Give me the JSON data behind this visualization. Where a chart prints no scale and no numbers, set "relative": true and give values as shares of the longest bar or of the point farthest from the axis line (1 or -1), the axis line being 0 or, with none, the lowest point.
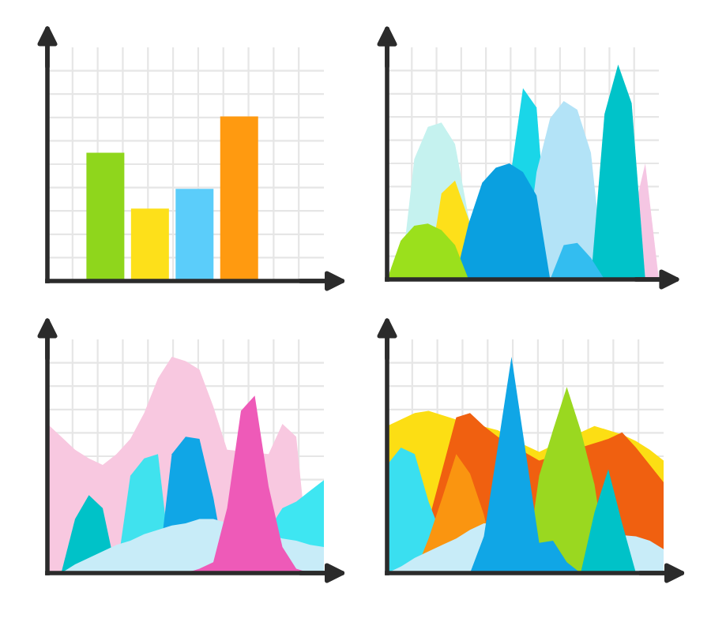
{
  "chart_data": [
    {
      "type": "bar",
      "relative": true,
      "categories": [
        null,
        null,
        null,
        null
      ],
      "values": [
        0.78,
        0.44,
        0.56,
        1
      ],
      "colors": [
        "#8fd61c",
        "#fde01a",
        "#5bcdfa",
        "#ff9a10"
      ],
      "grid": true,
      "tick_labels": false
    },
    {
      "type": "area",
      "relative": true,
      "grid": true,
      "tick_labels": false,
      "categories": [
        null,
        null,
        null,
        null,
        null,
        null,
        null,
        null,
        null,
        null,
        null,
        null,
        null,
        null,
        null,
        null,
        null,
        null,
        null,
        null,
        null
      ],
      "series": [
        {
          "color": "#c5f2ef",
          "values": [
            null,
            0,
            0.56,
            0.71,
            0.73,
            0.63,
            0.29,
            0,
            null,
            null,
            null,
            null,
            null,
            null,
            null,
            null,
            null,
            null,
            null,
            null,
            null
          ]
        },
        {
          "color": "#f5c6e3",
          "values": [
            null,
            null,
            null,
            null,
            null,
            null,
            null,
            null,
            null,
            null,
            null,
            null,
            null,
            null,
            null,
            null,
            null,
            0,
            null,
            0.54,
            0
          ]
        },
        {
          "color": "#1ad6e8",
          "values": [
            null,
            null,
            null,
            null,
            null,
            null,
            null,
            null,
            0,
            null,
            0.89,
            0.8,
            0,
            null,
            null,
            null,
            null,
            null,
            null,
            null,
            null
          ]
        },
        {
          "color": "#b3e3f7",
          "values": [
            null,
            null,
            null,
            null,
            null,
            null,
            null,
            null,
            null,
            null,
            0,
            0.5,
            0.75,
            0.83,
            0.79,
            0.59,
            0,
            null,
            null,
            null,
            null
          ]
        },
        {
          "color": "#00c3c9",
          "values": [
            null,
            null,
            null,
            null,
            null,
            null,
            null,
            null,
            null,
            null,
            null,
            null,
            null,
            null,
            null,
            0,
            0.77,
            1,
            0.82,
            0,
            null
          ]
        },
        {
          "color": "#fde01a",
          "values": [
            null,
            null,
            null,
            0,
            0.4,
            0.46,
            0.28,
            0,
            null,
            null,
            null,
            null,
            null,
            null,
            null,
            null,
            null,
            null,
            null,
            null,
            null
          ]
        },
        {
          "color": "#0aa0e0",
          "values": [
            null,
            null,
            null,
            null,
            null,
            0,
            0.26,
            0.45,
            0.52,
            0.54,
            0.5,
            0.39,
            0,
            null,
            null,
            null,
            null,
            null,
            null,
            null,
            null
          ]
        },
        {
          "color": "#9be01c",
          "values": [
            0,
            0.18,
            0.25,
            0.26,
            0.23,
            0.16,
            0,
            null,
            null,
            null,
            null,
            null,
            null,
            null,
            null,
            null,
            null,
            null,
            null,
            null,
            null
          ]
        },
        {
          "color": "#33bdf0",
          "values": [
            null,
            null,
            null,
            null,
            null,
            null,
            null,
            null,
            null,
            null,
            null,
            null,
            0,
            0.16,
            0.17,
            0.1,
            0,
            null,
            null,
            null,
            null
          ]
        }
      ]
    },
    {
      "type": "area",
      "relative": true,
      "grid": true,
      "tick_labels": false,
      "categories": [
        null,
        null,
        null,
        null,
        null,
        null,
        null,
        null,
        null,
        null,
        null,
        null,
        null,
        null,
        null,
        null,
        null,
        null,
        null,
        null,
        null
      ],
      "series": [
        {
          "color": "#f8c8e0",
          "values": [
            0.69,
            0.63,
            0.57,
            0.53,
            0.5,
            0.55,
            0.62,
            0.74,
            0.9,
            1,
            0.98,
            0.94,
            0.77,
            0.57,
            null,
            null,
            0.55,
            0.69,
            0.63,
            0,
            null
          ]
        },
        {
          "color": "#3ee6f2",
          "values": [
            null,
            null,
            null,
            null,
            null,
            null,
            null,
            null,
            null,
            null,
            null,
            null,
            null,
            null,
            0,
            null,
            null,
            0.3,
            0.33,
            0.38,
            0.43
          ]
        },
        {
          "color": "#40e2ee",
          "values": [
            null,
            null,
            null,
            null,
            null,
            0,
            0.45,
            0.53,
            0.55,
            0,
            null,
            null,
            null,
            null,
            null,
            null,
            null,
            null,
            null,
            null,
            null
          ]
        },
        {
          "color": "#10a6e6",
          "values": [
            null,
            null,
            null,
            null,
            null,
            null,
            null,
            null,
            0,
            0.55,
            0.63,
            0.62,
            0.35,
            0,
            null,
            null,
            null,
            null,
            null,
            null,
            null
          ]
        },
        {
          "color": "#00c2c8",
          "values": [
            null,
            0,
            0.25,
            0.36,
            0.3,
            0,
            null,
            null,
            null,
            null,
            null,
            null,
            null,
            null,
            null,
            null,
            null,
            null,
            null,
            null,
            null
          ]
        },
        {
          "color": "#c8ecf8",
          "values": [
            null,
            0,
            0.04,
            0.07,
            0.1,
            0.13,
            0.15,
            0.18,
            0.2,
            0.22,
            0.23,
            0.25,
            0.25,
            null,
            null,
            null,
            null,
            0.16,
            0.15,
            0.13,
            0.12
          ]
        },
        {
          "color": "#ee5ab8",
          "values": [
            null,
            null,
            null,
            null,
            null,
            null,
            null,
            null,
            null,
            null,
            0,
            0.02,
            0.05,
            0.3,
            0.75,
            0.82,
            0.4,
            0.12,
            0.02,
            0,
            null
          ]
        }
      ]
    },
    {
      "type": "area",
      "relative": true,
      "grid": true,
      "tick_labels": false,
      "categories": [
        null,
        null,
        null,
        null,
        null,
        null,
        null,
        null,
        null,
        null,
        null,
        null,
        null,
        null,
        null,
        null,
        null,
        null,
        null,
        null,
        null
      ],
      "series": [
        {
          "color": "#fcde14",
          "values": [
            0.68,
            0.71,
            0.74,
            0.75,
            0.73,
            0.71,
            null,
            null,
            0.66,
            null,
            0.59,
            0.56,
            null,
            null,
            0.65,
            0.68,
            0.66,
            0.64,
            0.61,
            0.57,
            0.52
          ]
        },
        {
          "color": "#f06010",
          "values": [
            null,
            null,
            0,
            null,
            0.48,
            0.72,
            0.74,
            0.68,
            0.63,
            null,
            null,
            0.52,
            null,
            null,
            null,
            0.6,
            0.62,
            0.65,
            0.58,
            0.5,
            0.42
          ]
        },
        {
          "color": "#3adff0",
          "values": [
            0.5,
            0.58,
            0.55,
            0.33,
            null,
            0,
            null,
            null,
            null,
            null,
            null,
            null,
            null,
            null,
            null,
            null,
            null,
            null,
            null,
            null,
            null
          ]
        },
        {
          "color": "#fa9510",
          "values": [
            null,
            null,
            0,
            0.16,
            0.35,
            0.55,
            0.46,
            0.27,
            0,
            null,
            null,
            null,
            null,
            null,
            null,
            null,
            null,
            null,
            null,
            null,
            null
          ]
        },
        {
          "color": "#c8ecf8",
          "values": [
            0,
            0.03,
            0.07,
            0.1,
            0.13,
            0.16,
            0.2,
            0.23,
            null,
            null,
            null,
            null,
            null,
            null,
            null,
            null,
            null,
            null,
            0.17,
            0.15,
            0.11
          ]
        },
        {
          "color": "#9ad820",
          "values": [
            null,
            null,
            null,
            null,
            null,
            null,
            null,
            null,
            null,
            null,
            0,
            0.45,
            0.66,
            0.86,
            0.66,
            0.41,
            0,
            null,
            null,
            null,
            null
          ]
        },
        {
          "color": "#10a6e6",
          "values": [
            null,
            null,
            null,
            null,
            null,
            null,
            0,
            0.17,
            0.58,
            1,
            0.57,
            0.14,
            0.15,
            0.05,
            0,
            null,
            null,
            null,
            null,
            null,
            null
          ]
        },
        {
          "color": "#00c2c8",
          "values": [
            null,
            null,
            null,
            null,
            null,
            null,
            null,
            null,
            null,
            null,
            null,
            null,
            null,
            null,
            0,
            0.28,
            0.48,
            0.23,
            0,
            null,
            null
          ]
        }
      ]
    }
  ]
}
